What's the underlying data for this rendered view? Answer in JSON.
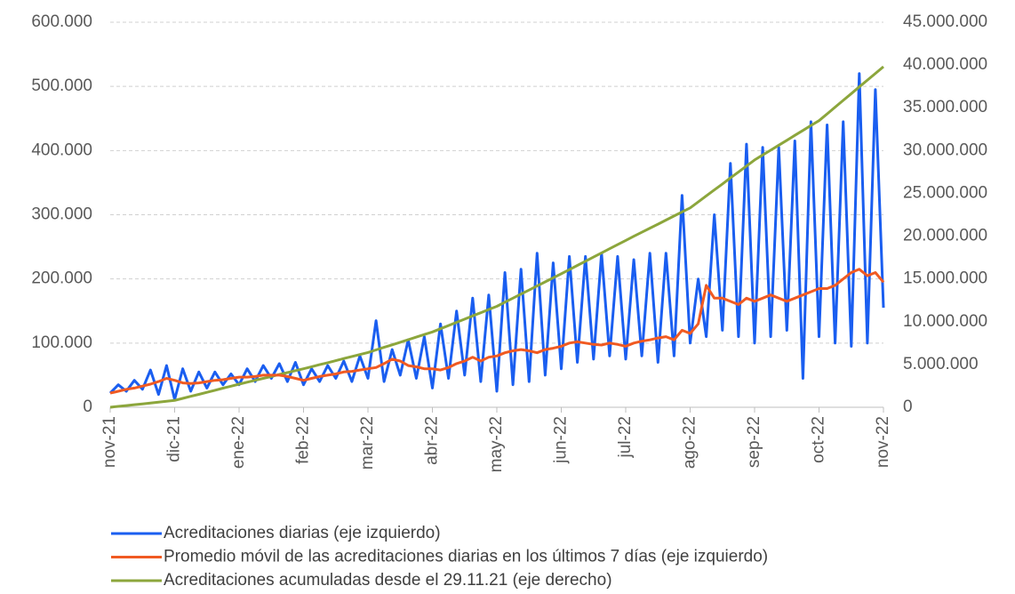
{
  "chart_data": {
    "type": "line",
    "categories": [
      "nov-21",
      null,
      null,
      null,
      null,
      null,
      null,
      null,
      "dic-21",
      null,
      null,
      null,
      null,
      null,
      null,
      null,
      "ene-22",
      null,
      null,
      null,
      null,
      null,
      null,
      null,
      "feb-22",
      null,
      null,
      null,
      null,
      null,
      null,
      null,
      "mar-22",
      null,
      null,
      null,
      null,
      null,
      null,
      null,
      "abr-22",
      null,
      null,
      null,
      null,
      null,
      null,
      null,
      "may-22",
      null,
      null,
      null,
      null,
      null,
      null,
      null,
      "jun-22",
      null,
      null,
      null,
      null,
      null,
      null,
      null,
      "jul-22",
      null,
      null,
      null,
      null,
      null,
      null,
      null,
      "ago-22",
      null,
      null,
      null,
      null,
      null,
      null,
      null,
      "sep-22",
      null,
      null,
      null,
      null,
      null,
      null,
      null,
      "oct-22",
      null,
      null,
      null,
      null,
      null,
      null,
      null,
      "nov-22"
    ],
    "series": [
      {
        "name": "Acreditaciones diarias (eje izquierdo)",
        "color": "#1a5ef0",
        "values": [
          22000,
          35000,
          25000,
          42000,
          28000,
          58000,
          20000,
          65000,
          12000,
          60000,
          25000,
          55000,
          30000,
          55000,
          35000,
          52000,
          35000,
          60000,
          40000,
          65000,
          45000,
          68000,
          40000,
          70000,
          35000,
          60000,
          40000,
          65000,
          45000,
          72000,
          40000,
          80000,
          45000,
          135000,
          40000,
          90000,
          50000,
          105000,
          45000,
          110000,
          30000,
          130000,
          45000,
          150000,
          50000,
          170000,
          40000,
          175000,
          25000,
          210000,
          35000,
          215000,
          40000,
          240000,
          50000,
          225000,
          60000,
          235000,
          70000,
          235000,
          75000,
          240000,
          80000,
          235000,
          75000,
          230000,
          80000,
          240000,
          70000,
          240000,
          80000,
          330000,
          100000,
          200000,
          110000,
          300000,
          120000,
          380000,
          110000,
          410000,
          100000,
          405000,
          110000,
          405000,
          120000,
          415000,
          45000,
          445000,
          110000,
          440000,
          100000,
          445000,
          95000,
          520000,
          100000,
          495000,
          155000
        ]
      },
      {
        "name": "Promedio móvil de las acreditaciones diarias en los últimos 7 días (eje izquierdo)",
        "color": "#f05a22",
        "values": [
          22000,
          25000,
          28000,
          30000,
          33000,
          36000,
          40000,
          45000,
          42000,
          38000,
          37000,
          38000,
          40000,
          42000,
          43000,
          45000,
          47000,
          47000,
          48000,
          50000,
          50000,
          50000,
          48000,
          45000,
          42000,
          45000,
          48000,
          50000,
          52000,
          55000,
          56000,
          58000,
          60000,
          62000,
          68000,
          75000,
          72000,
          65000,
          63000,
          60000,
          60000,
          58000,
          62000,
          68000,
          72000,
          78000,
          72000,
          78000,
          80000,
          85000,
          88000,
          90000,
          88000,
          85000,
          90000,
          92000,
          95000,
          100000,
          102000,
          100000,
          98000,
          97000,
          100000,
          98000,
          95000,
          100000,
          103000,
          105000,
          108000,
          110000,
          105000,
          120000,
          115000,
          130000,
          190000,
          170000,
          170000,
          165000,
          160000,
          170000,
          165000,
          170000,
          175000,
          170000,
          165000,
          170000,
          175000,
          180000,
          185000,
          185000,
          190000,
          200000,
          210000,
          215000,
          205000,
          210000,
          195000
        ]
      },
      {
        "name": "Acreditaciones acumuladas desde el 29.11.21 (eje derecho)",
        "color": "#8ca63c",
        "axis": "y2",
        "values": [
          0,
          100000,
          200000,
          300000,
          400000,
          500000,
          600000,
          700000,
          800000,
          1040000,
          1280000,
          1510000,
          1750000,
          1990000,
          2230000,
          2460000,
          2700000,
          2930000,
          3150000,
          3380000,
          3600000,
          3830000,
          4050000,
          4280000,
          4500000,
          4740000,
          4980000,
          5210000,
          5450000,
          5690000,
          5930000,
          6160000,
          6400000,
          6700000,
          7000000,
          7300000,
          7600000,
          7900000,
          8200000,
          8500000,
          8800000,
          9180000,
          9550000,
          9930000,
          10300000,
          10680000,
          11050000,
          11430000,
          11800000,
          12280000,
          12750000,
          13230000,
          13700000,
          14180000,
          14650000,
          15130000,
          15600000,
          16090000,
          16580000,
          17060000,
          17550000,
          18040000,
          18530000,
          19010000,
          19500000,
          19980000,
          20450000,
          20930000,
          21400000,
          21880000,
          22350000,
          22830000,
          23300000,
          24000000,
          24700000,
          25400000,
          26100000,
          26800000,
          27500000,
          28200000,
          28900000,
          29480000,
          30050000,
          30630000,
          31200000,
          31780000,
          32350000,
          32930000,
          33500000,
          34290000,
          35080000,
          35860000,
          36650000,
          37440000,
          38230000,
          39010000,
          39800000
        ]
      }
    ],
    "ylim": [
      0,
      600000
    ],
    "yticks": [
      0,
      {
        "value": 100000,
        "label": "100.000"
      },
      {
        "value": 200000,
        "label": "200.000"
      },
      {
        "value": 300000,
        "label": "300.000"
      },
      {
        "value": 400000,
        "label": "400.000"
      },
      {
        "value": 500000,
        "label": "500.000"
      },
      {
        "value": 600000,
        "label": "600.000"
      }
    ],
    "y2lim": [
      0,
      45000000
    ],
    "y2ticks": [
      0,
      {
        "value": 5000000,
        "label": "5.000.000"
      },
      {
        "value": 10000000,
        "label": "10.000.000"
      },
      {
        "value": 15000000,
        "label": "15.000.000"
      },
      {
        "value": 20000000,
        "label": "20.000.000"
      },
      {
        "value": 25000000,
        "label": "25.000.000"
      },
      {
        "value": 30000000,
        "label": "30.000.000"
      },
      {
        "value": 35000000,
        "label": "35.000.000"
      },
      {
        "value": 40000000,
        "label": "40.000.000"
      },
      {
        "value": 45000000,
        "label": "45.000.000"
      }
    ],
    "grid": true,
    "legend": "bottom"
  }
}
